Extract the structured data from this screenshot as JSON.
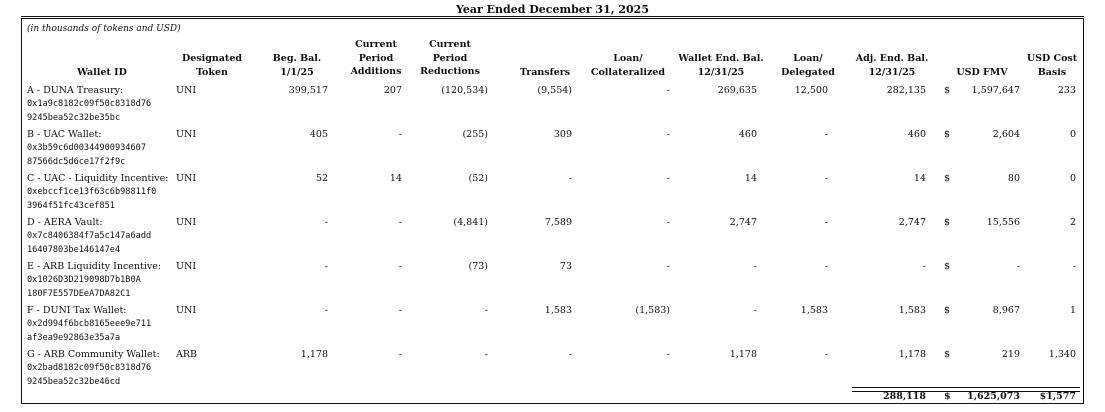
{
  "title": "Year Ended December 31, 2025",
  "subtitle": "(in thousands of tokens and USD)",
  "headers": {
    "wallet_id": "Wallet ID",
    "token_l1": "Designated",
    "token_l2": "Token",
    "beg_l1": "Beg. Bal.",
    "beg_l2": "1/1/25",
    "add_l1": "Current",
    "add_l2": "Period",
    "add_l3": "Additions",
    "red_l1": "Current",
    "red_l2": "Period",
    "red_l3": "Reductions",
    "transfers": "Transfers",
    "loan_l1": "Loan/",
    "loan_l2": "Collateralized",
    "wend_l1": "Wallet End. Bal.",
    "wend_l2": "12/31/25",
    "del_l1": "Loan/",
    "del_l2": "Delegated",
    "adj_l1": "Adj. End. Bal.",
    "adj_l2": "12/31/25",
    "fmv": "USD FMV",
    "cost_l1": "USD Cost",
    "cost_l2": "Basis"
  },
  "rows": [
    {
      "name": "A - DUNA Treasury:",
      "addr1": "0x1a9c8182c09f50c8318d76",
      "addr2": "9245bea52c32be35bc",
      "token": "UNI",
      "beg": "399,517",
      "add": "207",
      "red": "(120,534)",
      "transfers": "(9,554)",
      "loan": "-",
      "wend": "269,635",
      "del": "12,500",
      "adj": "282,135",
      "dollar": "$",
      "fmv": "1,597,647",
      "cost": "233"
    },
    {
      "name": "B - UAC Wallet:",
      "addr1": "0x3b59c6d00344900934607",
      "addr2": "87566dc5d6ce17f2f9c",
      "token": "UNI",
      "beg": "405",
      "add": "-",
      "red": "(255)",
      "transfers": "309",
      "loan": "-",
      "wend": "460",
      "del": "-",
      "adj": "460",
      "dollar": "$",
      "fmv": "2,604",
      "cost": "0"
    },
    {
      "name": "C - UAC - Liquidity Incentive:",
      "addr1": "0xebccf1ce13f63c6b98811f0",
      "addr2": "3964f51fc43cef851",
      "token": "UNI",
      "beg": "52",
      "add": "14",
      "red": "(52)",
      "transfers": "-",
      "loan": "-",
      "wend": "14",
      "del": "-",
      "adj": "14",
      "dollar": "$",
      "fmv": "80",
      "cost": "0"
    },
    {
      "name": "D - AERA Vault:",
      "addr1": "0x7c8406384f7a5c147a6add",
      "addr2": "16407803be146147e4",
      "token": "UNI",
      "beg": "-",
      "add": "-",
      "red": "(4,841)",
      "transfers": "7,589",
      "loan": "-",
      "wend": "2,747",
      "del": "-",
      "adj": "2,747",
      "dollar": "$",
      "fmv": "15,556",
      "cost": "2"
    },
    {
      "name": "E - ARB Liquidity Incentive:",
      "addr1": "0x1026D3D219098D7b1B0A",
      "addr2": "180F7E557DEeA7DA82C1",
      "token": "UNI",
      "beg": "-",
      "add": "-",
      "red": "(73)",
      "transfers": "73",
      "loan": "-",
      "wend": "-",
      "del": "-",
      "adj": "-",
      "dollar": "$",
      "fmv": "-",
      "cost": "-"
    },
    {
      "name": "F - DUNI Tax Wallet:",
      "addr1": "0x2d994f6bcb8165eee9e711",
      "addr2": "af3ea9e92863e35a7a",
      "token": "UNI",
      "beg": "-",
      "add": "-",
      "red": "-",
      "transfers": "1,583",
      "loan": "(1,583)",
      "wend": "-",
      "del": "1,583",
      "adj": "1,583",
      "dollar": "$",
      "fmv": "8,967",
      "cost": "1"
    },
    {
      "name": "G - ARB Community Wallet:",
      "addr1": "0x2bad8182c09f50c8318d76",
      "addr2": "9245bea52c32be46cd",
      "token": "ARB",
      "beg": "1,178",
      "add": "-",
      "red": "-",
      "transfers": "-",
      "loan": "-",
      "wend": "1,178",
      "del": "-",
      "adj": "1,178",
      "dollar": "$",
      "fmv": "219",
      "cost": "1,340"
    }
  ],
  "totals": {
    "adj": "288,118",
    "dollar": "$",
    "fmv": "1,625,073",
    "cost": "$1,577"
  }
}
